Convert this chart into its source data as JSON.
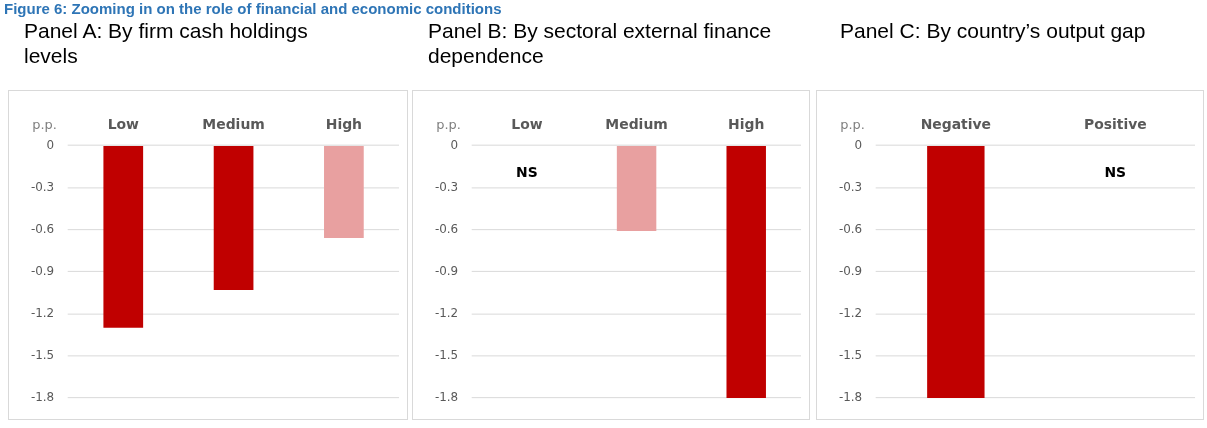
{
  "chart_data": [
    {
      "type": "bar",
      "title": "Panel A: By firm cash holdings levels",
      "ylabel": "p.p.",
      "categories": [
        "Low",
        "Medium",
        "High"
      ],
      "series": [
        {
          "colors": [
            "#c00000",
            "#c00000",
            "#e8a0a0"
          ],
          "values": [
            -1.3,
            -1.03,
            -0.66
          ]
        }
      ],
      "ylim": [
        -1.8,
        0
      ],
      "yticks": [
        0,
        -0.3,
        -0.6,
        -0.9,
        -1.2,
        -1.5,
        -1.8
      ],
      "grid": "y",
      "legend": false,
      "annotations": [
        "Figure 6: Zooming in on the role of financial and economic conditions"
      ]
    },
    {
      "type": "bar",
      "title": "Panel B: By sectoral external finance dependence",
      "ylabel": "p.p.",
      "categories": [
        "Low",
        "Medium",
        "High"
      ],
      "series": [
        {
          "colors": [
            "#c00000",
            "#e8a0a0",
            "#c00000"
          ],
          "values": [
            null,
            -0.61,
            -1.8
          ]
        }
      ],
      "ylim": [
        -1.8,
        0
      ],
      "yticks": [
        0,
        -0.3,
        -0.6,
        -0.9,
        -1.2,
        -1.5,
        -1.8
      ],
      "grid": "y",
      "legend": false,
      "annotations": [
        "NS"
      ]
    },
    {
      "type": "bar",
      "title": "Panel C: By country’s output gap",
      "ylabel": "p.p.",
      "categories": [
        "Negative",
        "Positive"
      ],
      "series": [
        {
          "colors": [
            "#c00000",
            "#c00000"
          ],
          "values": [
            -1.8,
            null
          ]
        }
      ],
      "ylim": [
        -1.8,
        0
      ],
      "yticks": [
        0,
        -0.3,
        -0.6,
        -0.9,
        -1.2,
        -1.5,
        -1.8
      ],
      "grid": "y",
      "legend": false,
      "annotations": [
        "NS"
      ]
    }
  ]
}
